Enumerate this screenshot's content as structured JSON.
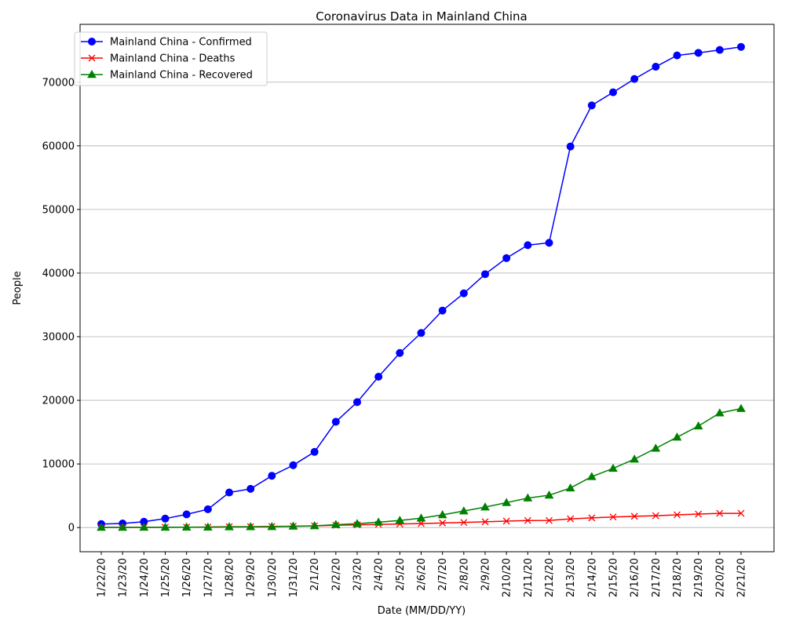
{
  "chart_data": {
    "type": "line",
    "title": "Coronavirus Data in Mainland China",
    "xlabel": "Date (MM/DD/YY)",
    "ylabel": "People",
    "categories": [
      "1/22/20",
      "1/23/20",
      "1/24/20",
      "1/25/20",
      "1/26/20",
      "1/27/20",
      "1/28/20",
      "1/29/20",
      "1/30/20",
      "1/31/20",
      "2/1/20",
      "2/2/20",
      "2/3/20",
      "2/4/20",
      "2/5/20",
      "2/6/20",
      "2/7/20",
      "2/8/20",
      "2/9/20",
      "2/10/20",
      "2/11/20",
      "2/12/20",
      "2/13/20",
      "2/14/20",
      "2/15/20",
      "2/16/20",
      "2/17/20",
      "2/18/20",
      "2/19/20",
      "2/20/20",
      "2/21/20"
    ],
    "ylim": [
      -3800,
      79100
    ],
    "yticks": [
      0,
      10000,
      20000,
      30000,
      40000,
      50000,
      60000,
      70000
    ],
    "grid": "horizontal",
    "legend_position": "top-left",
    "series": [
      {
        "name": "Mainland China - Confirmed",
        "color": "#0000ff",
        "marker": "circle",
        "values": [
          548,
          643,
          920,
          1406,
          2075,
          2877,
          5509,
          6087,
          8141,
          9802,
          11891,
          16630,
          19716,
          23707,
          27440,
          30587,
          34110,
          36814,
          39829,
          42354,
          44386,
          44759,
          59895,
          66358,
          68413,
          70513,
          72434,
          74211,
          74619,
          75077,
          75550
        ]
      },
      {
        "name": "Mainland China - Deaths",
        "color": "#ff0000",
        "marker": "x",
        "values": [
          17,
          18,
          26,
          42,
          56,
          82,
          131,
          133,
          171,
          213,
          259,
          361,
          425,
          490,
          562,
          632,
          717,
          804,
          904,
          1011,
          1111,
          1116,
          1368,
          1520,
          1662,
          1765,
          1863,
          2002,
          2114,
          2236,
          2236
        ]
      },
      {
        "name": "Mainland China - Recovered",
        "color": "#008000",
        "marker": "triangle",
        "values": [
          28,
          30,
          36,
          39,
          49,
          58,
          101,
          120,
          135,
          214,
          275,
          463,
          614,
          843,
          1115,
          1476,
          1998,
          2595,
          3218,
          3917,
          4635,
          5079,
          6213,
          8001,
          9294,
          10748,
          12455,
          14199,
          15952,
          18002,
          18693
        ]
      }
    ]
  }
}
